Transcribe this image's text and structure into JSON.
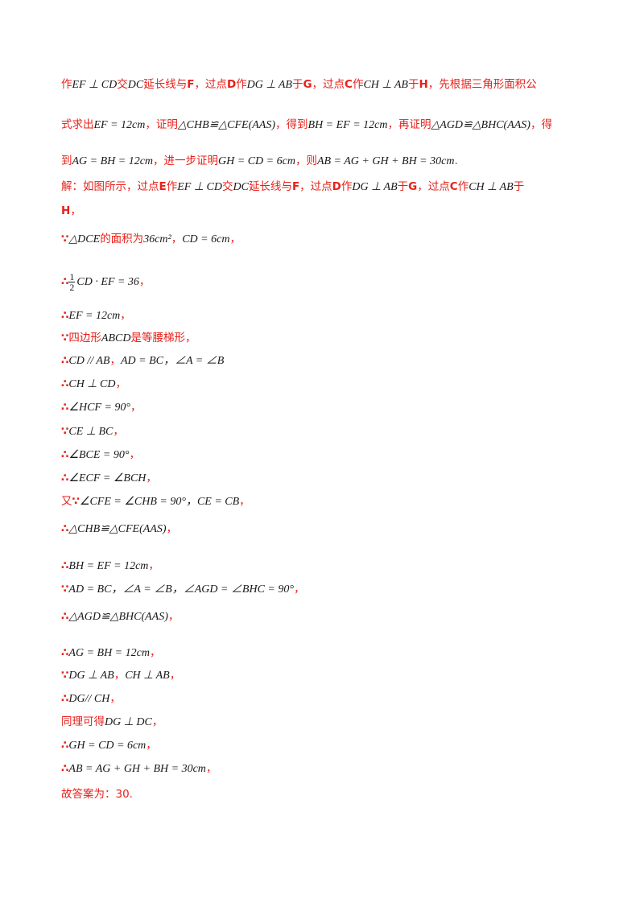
{
  "analysis": {
    "l1": {
      "t1": "作",
      "m1": "EF ⊥ CD",
      "t2": "交",
      "m2": "DC",
      "t3": "延长线与",
      "v1": "F",
      "t4": "，过点",
      "v2": "D",
      "t5": "作",
      "m3": "DG ⊥ AB",
      "t6": "于",
      "v3": "G",
      "t7": "，过点",
      "v4": "C",
      "t8": "作",
      "m4": "CH ⊥ AB",
      "t9": "于",
      "v5": "H",
      "t10": "，先根据三角形面积公"
    },
    "l2": {
      "t1": "式求出",
      "m1": "EF = 12cm",
      "t2": "，证明",
      "m2": "△CHB≌△CFE(AAS)",
      "t3": "，得到",
      "m3": "BH = EF = 12cm",
      "t4": "，再证明",
      "m4": "△AGD≌△BHC(AAS)",
      "t5": "，得"
    },
    "l3": {
      "t1": "到",
      "m1": "AG = BH = 12cm",
      "t2": "，进一步证明",
      "m2": "GH = CD = 6cm",
      "t3": "，则",
      "m3": "AB = AG + GH + BH = 30cm",
      "t4": "."
    }
  },
  "solution": {
    "l1": {
      "t1": "解：如图所示，过点",
      "v1": "E",
      "t2": "作",
      "m1": "EF ⊥ CD",
      "t3": "交",
      "m2": "DC",
      "t4": "延长线与",
      "v2": "F",
      "t5": "，过点",
      "v3": "D",
      "t6": "作",
      "m3": "DG ⊥ AB",
      "t7": "于",
      "v4": "G",
      "t8": "，过点",
      "v5": "C",
      "t9": "作",
      "m4": "CH ⊥ AB",
      "t10": "于"
    },
    "l2": {
      "v1": "H",
      "t1": "，"
    },
    "steps": [
      {
        "sym": "∵",
        "pre": "△DCE",
        "text": "的面积为",
        "m1": "36cm²",
        "sep": "，",
        "m2": "CD = 6cm",
        "end": "，"
      },
      {
        "sym": "∴",
        "frac_num": "1",
        "frac_den": "2",
        "m1": "CD · EF = 36",
        "end": "，"
      },
      {
        "sym": "∴",
        "m1": "EF = 12cm",
        "end": "，"
      },
      {
        "sym": "∵",
        "text": "四边形",
        "m1": "ABCD",
        "text2": "是等腰梯形，"
      },
      {
        "sym": "∴",
        "m1": "CD // AB",
        "sep": "，",
        "m2": "AD = BC，∠A = ∠B"
      },
      {
        "sym": "∴",
        "m1": "CH ⊥ CD",
        "end": "，"
      },
      {
        "sym": "∴",
        "m1": "∠HCF = 90°",
        "end": "，"
      },
      {
        "sym": "∵",
        "m1": "CE ⊥ BC",
        "end": "，"
      },
      {
        "sym": "∴",
        "m1": "∠BCE = 90°",
        "end": "，"
      },
      {
        "sym": "∴",
        "m1": "∠ECF = ∠BCH",
        "end": "，"
      },
      {
        "pre_text": "又",
        "sym": "∵",
        "m1": "∠CFE = ∠CHB = 90°，CE = CB",
        "end": "，"
      },
      {
        "sym": "∴",
        "m1": "△CHB≌△CFE(AAS)",
        "end": "，"
      },
      {
        "sym": "∴",
        "m1": "BH = EF = 12cm",
        "end": "，"
      },
      {
        "sym": "∵",
        "m1": "AD = BC，∠A = ∠B，∠AGD = ∠BHC = 90°",
        "end": "，"
      },
      {
        "sym": "∴",
        "m1": "△AGD≌△BHC(AAS)",
        "end": "，"
      },
      {
        "sym": "∴",
        "m1": "AG = BH = 12cm",
        "end": "，"
      },
      {
        "sym": "∵",
        "m1": "DG ⊥ AB",
        "sep": "，",
        "m2": "CH ⊥ AB",
        "end": "，"
      },
      {
        "sym": "∴",
        "m1": "DG// CH",
        "end": "，"
      },
      {
        "text": "同理可得",
        "m1": "DG ⊥ DC",
        "end": "，"
      },
      {
        "sym": "∴",
        "m1": "GH = CD = 6cm",
        "end": "，"
      },
      {
        "sym": "∴",
        "m1": "AB = AG + GH + BH = 30cm",
        "end": "，"
      }
    ],
    "final": "故答案为：30."
  }
}
